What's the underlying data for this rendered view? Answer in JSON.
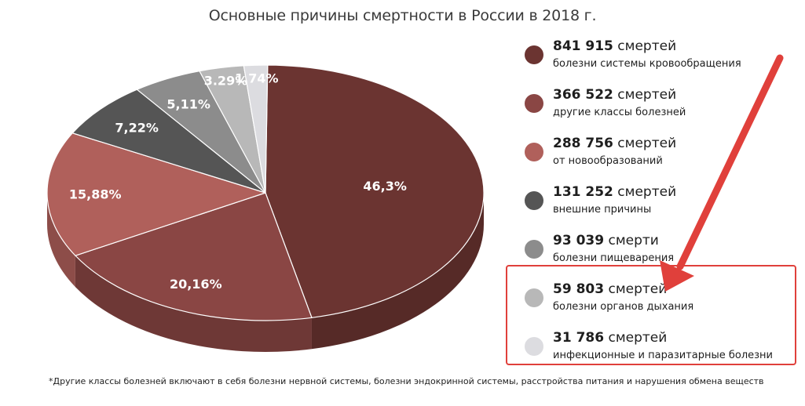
{
  "chart_data": {
    "type": "pie",
    "title": "Основные причины смертности в России в 2018 г.",
    "slices": [
      {
        "label": "болезни системы кровообращения",
        "count": "841 915",
        "count_word": "смертей",
        "percent_label": "46,3%",
        "value": 46.3,
        "color": "#6b3431"
      },
      {
        "label": "другие классы болезней",
        "count": "366 522",
        "count_word": "смертей",
        "percent_label": "20,16%",
        "value": 20.16,
        "color": "#8a4644"
      },
      {
        "label": "от новообразований",
        "count": "288 756",
        "count_word": "смертей",
        "percent_label": "15,88%",
        "value": 15.88,
        "color": "#b0605b"
      },
      {
        "label": "внешние причины",
        "count": "131 252",
        "count_word": "смертей",
        "percent_label": "7,22%",
        "value": 7.22,
        "color": "#555555"
      },
      {
        "label": "болезни пищеварения",
        "count": "93 039",
        "count_word": "смерти",
        "percent_label": "5,11%",
        "value": 5.11,
        "color": "#8c8c8c"
      },
      {
        "label": "болезни органов дыхания",
        "count": "59 803",
        "count_word": "смертей",
        "percent_label": "3.29%",
        "value": 3.29,
        "color": "#b8b8b8"
      },
      {
        "label": "инфекционные и паразитарные болезни",
        "count": "31 786",
        "count_word": "смертей",
        "percent_label": "1.74%",
        "value": 1.74,
        "color": "#dcdce0"
      }
    ],
    "legend_position": "right",
    "highlighted": [
      "болезни органов дыхания",
      "инфекционные и паразитарные болезни"
    ],
    "footnote": "*Другие классы болезней включают в себя болезни нервной системы, болезни эндокринной системы, расстройства питания и нарушения обмена веществ"
  },
  "colors": {
    "highlight": "#e0403b"
  }
}
